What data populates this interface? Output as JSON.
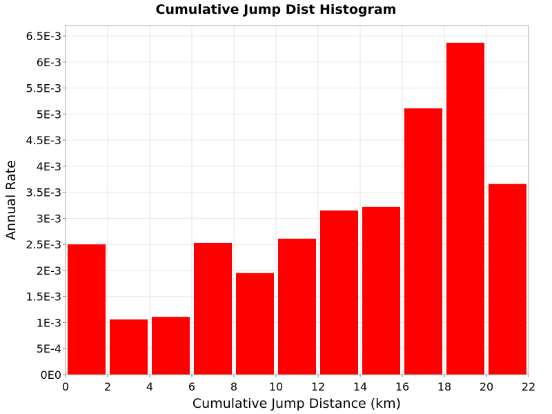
{
  "chart_data": {
    "type": "bar",
    "title": "Cumulative Jump Dist Histogram",
    "xlabel": "Cumulative Jump Distance (km)",
    "ylabel": "Annual Rate",
    "xlim": [
      0,
      22
    ],
    "ylim": [
      0,
      0.0067
    ],
    "bar_color": "#ff0000",
    "grid": true,
    "x_ticks": [
      {
        "value": 0,
        "label": "0"
      },
      {
        "value": 2,
        "label": "2"
      },
      {
        "value": 4,
        "label": "4"
      },
      {
        "value": 6,
        "label": "6"
      },
      {
        "value": 8,
        "label": "8"
      },
      {
        "value": 10,
        "label": "10"
      },
      {
        "value": 12,
        "label": "12"
      },
      {
        "value": 14,
        "label": "14"
      },
      {
        "value": 16,
        "label": "16"
      },
      {
        "value": 18,
        "label": "18"
      },
      {
        "value": 20,
        "label": "20"
      },
      {
        "value": 22,
        "label": "22"
      }
    ],
    "y_ticks": [
      {
        "value": 0,
        "label": "0E0"
      },
      {
        "value": 0.0005,
        "label": "5E-4"
      },
      {
        "value": 0.001,
        "label": "1E-3"
      },
      {
        "value": 0.0015,
        "label": "1.5E-3"
      },
      {
        "value": 0.002,
        "label": "2E-3"
      },
      {
        "value": 0.0025,
        "label": "2.5E-3"
      },
      {
        "value": 0.003,
        "label": "3E-3"
      },
      {
        "value": 0.0035,
        "label": "3.5E-3"
      },
      {
        "value": 0.004,
        "label": "4E-3"
      },
      {
        "value": 0.0045,
        "label": "4.5E-3"
      },
      {
        "value": 0.005,
        "label": "5E-3"
      },
      {
        "value": 0.0055,
        "label": "5.5E-3"
      },
      {
        "value": 0.006,
        "label": "6E-3"
      },
      {
        "value": 0.0065,
        "label": "6.5E-3"
      }
    ],
    "bins": [
      {
        "x0": 0,
        "x1": 2,
        "value": 0.0025
      },
      {
        "x0": 2,
        "x1": 4,
        "value": 0.00106
      },
      {
        "x0": 4,
        "x1": 6,
        "value": 0.00111
      },
      {
        "x0": 6,
        "x1": 8,
        "value": 0.00253
      },
      {
        "x0": 8,
        "x1": 10,
        "value": 0.00195
      },
      {
        "x0": 10,
        "x1": 12,
        "value": 0.00261
      },
      {
        "x0": 12,
        "x1": 14,
        "value": 0.00315
      },
      {
        "x0": 14,
        "x1": 16,
        "value": 0.00322
      },
      {
        "x0": 16,
        "x1": 18,
        "value": 0.00511
      },
      {
        "x0": 18,
        "x1": 20,
        "value": 0.00637
      },
      {
        "x0": 20,
        "x1": 22,
        "value": 0.00366
      }
    ]
  }
}
